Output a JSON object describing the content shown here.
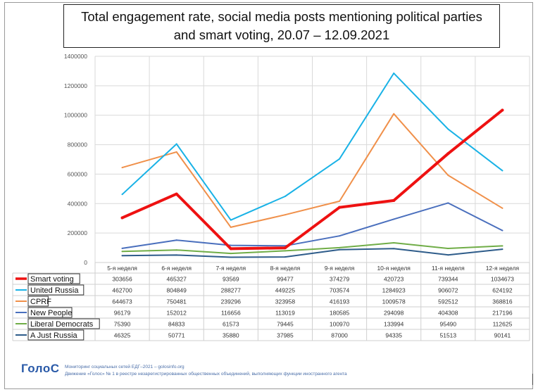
{
  "title": "Total engagement rate, social media posts mentioning political parties\nand smart voting, 20.07 – 12.09.2021",
  "footer": {
    "logo": "ГолоС",
    "line1": "Мониторинг социальных сетей ЕДГ–2021 – golosinfo.org",
    "line2": "Движение «Голос» № 1 в реестре незарегистрированных общественных объединений, выполняющих функции иностранного агента"
  },
  "chart_data": {
    "type": "line",
    "title": "Total engagement rate, social media posts mentioning political parties and smart voting, 20.07 – 12.09.2021",
    "categories": [
      "5-я неделя",
      "6-я неделя",
      "7-я неделя",
      "8-я неделя",
      "9-я неделя",
      "10-я неделя",
      "11-я неделя",
      "12-я неделя"
    ],
    "ylim": [
      0,
      1400000
    ],
    "yticks": [
      "0",
      "200000",
      "400000",
      "600000",
      "800000",
      "1000000",
      "1200000",
      "1400000"
    ],
    "grid": true,
    "legend_position": "bottom-left (data table)",
    "series": [
      {
        "name": "Smart voting",
        "color": "#ee1111",
        "bold": true,
        "values": [
          303656,
          465327,
          93569,
          99477,
          374279,
          420723,
          739344,
          1034673
        ]
      },
      {
        "name": "United Russia",
        "color": "#19b2e6",
        "values": [
          462700,
          804849,
          288277,
          449225,
          703574,
          1284923,
          906072,
          624192
        ]
      },
      {
        "name": "CPRF",
        "color": "#f0904a",
        "values": [
          644673,
          750481,
          239296,
          323958,
          416193,
          1009578,
          592512,
          368816
        ]
      },
      {
        "name": "New People",
        "color": "#4a6fbd",
        "values": [
          96179,
          152012,
          116656,
          113019,
          180585,
          294098,
          404308,
          217196
        ]
      },
      {
        "name": "Liberal Democrats",
        "color": "#70ad47",
        "values": [
          75390,
          84833,
          61573,
          79445,
          100970,
          133994,
          95490,
          112625
        ]
      },
      {
        "name": "A Just Russia",
        "color": "#2e5c8a",
        "values": [
          46325,
          50771,
          35880,
          37985,
          87000,
          94335,
          51513,
          90141
        ]
      }
    ]
  }
}
